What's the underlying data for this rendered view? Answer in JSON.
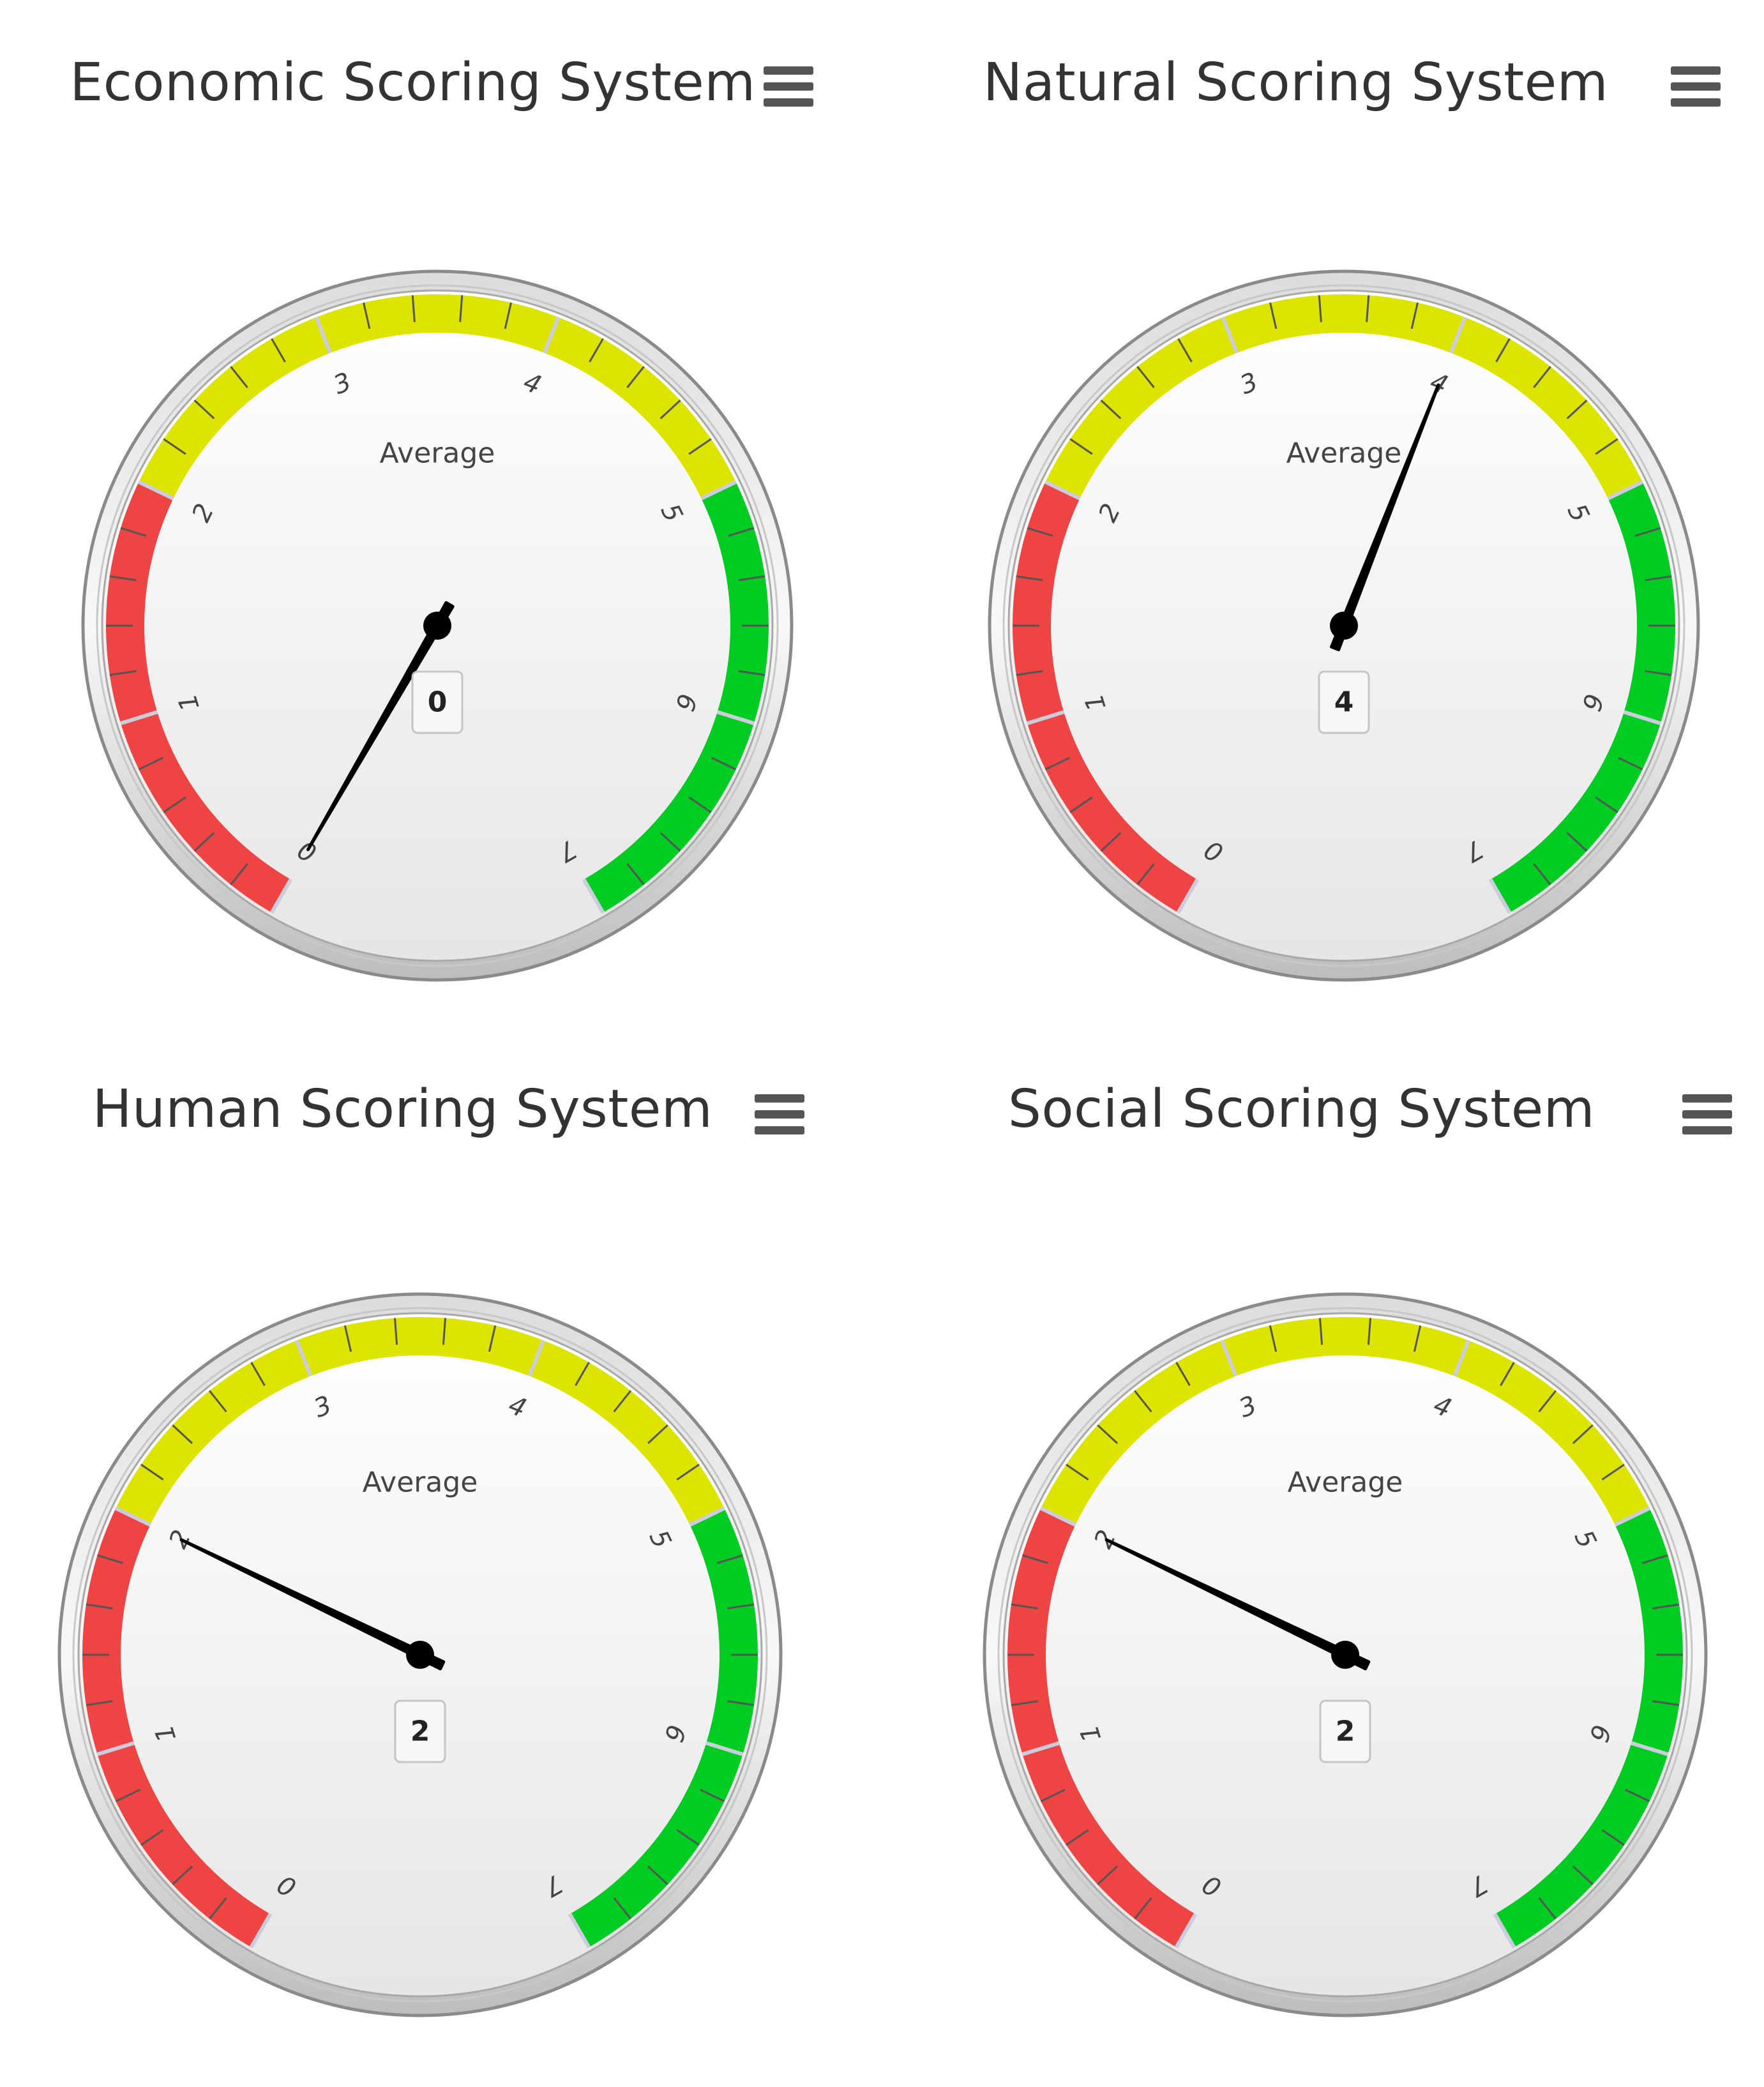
{
  "gauges": [
    {
      "title": "Economic Scoring System",
      "pane_label": "Average",
      "value": 0,
      "value_label": "0",
      "chart_data": {
        "type": "gauge",
        "title": "Economic Scoring System",
        "min": 0,
        "max": 7,
        "value": 0,
        "tick_labels": [
          "0",
          "1",
          "2",
          "3",
          "4",
          "5",
          "6",
          "7"
        ],
        "bands": [
          {
            "from": 0,
            "to": 2,
            "color": "#ee4444"
          },
          {
            "from": 2,
            "to": 5,
            "color": "#dde400"
          },
          {
            "from": 5,
            "to": 7,
            "color": "#00cc22"
          }
        ]
      }
    },
    {
      "title": "Natural Scoring System",
      "pane_label": "Average",
      "value": 4,
      "value_label": "4",
      "chart_data": {
        "type": "gauge",
        "title": "Natural Scoring System",
        "min": 0,
        "max": 7,
        "value": 4,
        "tick_labels": [
          "0",
          "1",
          "2",
          "3",
          "4",
          "5",
          "6",
          "7"
        ],
        "bands": [
          {
            "from": 0,
            "to": 2,
            "color": "#ee4444"
          },
          {
            "from": 2,
            "to": 5,
            "color": "#dde400"
          },
          {
            "from": 5,
            "to": 7,
            "color": "#00cc22"
          }
        ]
      }
    },
    {
      "title": "Human Scoring System",
      "pane_label": "Average",
      "value": 2,
      "value_label": "2",
      "chart_data": {
        "type": "gauge",
        "title": "Human Scoring System",
        "min": 0,
        "max": 7,
        "value": 2,
        "tick_labels": [
          "0",
          "1",
          "2",
          "3",
          "4",
          "5",
          "6",
          "7"
        ],
        "bands": [
          {
            "from": 0,
            "to": 2,
            "color": "#ee4444"
          },
          {
            "from": 2,
            "to": 5,
            "color": "#dde400"
          },
          {
            "from": 5,
            "to": 7,
            "color": "#00cc22"
          }
        ]
      }
    },
    {
      "title": "Social Scoring System",
      "pane_label": "Average",
      "value": 2,
      "value_label": "2",
      "chart_data": {
        "type": "gauge",
        "title": "Social Scoring System",
        "min": 0,
        "max": 7,
        "value": 2,
        "tick_labels": [
          "0",
          "1",
          "2",
          "3",
          "4",
          "5",
          "6",
          "7"
        ],
        "bands": [
          {
            "from": 0,
            "to": 2,
            "color": "#ee4444"
          },
          {
            "from": 2,
            "to": 5,
            "color": "#dde400"
          },
          {
            "from": 5,
            "to": 7,
            "color": "#00cc22"
          }
        ]
      }
    }
  ],
  "icons": {
    "menu": "hamburger-menu-icon"
  }
}
